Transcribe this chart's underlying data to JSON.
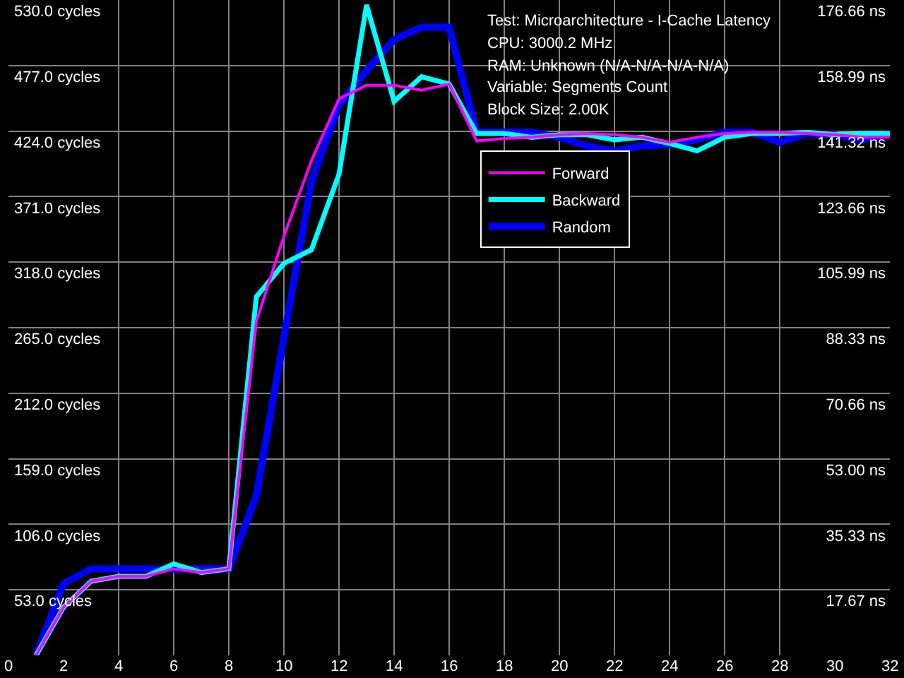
{
  "chart_data": {
    "type": "line",
    "x": [
      1,
      2,
      3,
      4,
      5,
      6,
      7,
      8,
      9,
      10,
      11,
      12,
      13,
      14,
      15,
      16,
      17,
      18,
      19,
      20,
      21,
      22,
      23,
      24,
      25,
      26,
      27,
      28,
      29,
      30,
      31,
      32
    ],
    "series": [
      {
        "name": "Forward",
        "color": "#ff00ff",
        "values": [
          0,
          39,
          60,
          64,
          64,
          70,
          67,
          70,
          270,
          339,
          400,
          450,
          461,
          461,
          457,
          462,
          416,
          418,
          419,
          421,
          422,
          421,
          419,
          415,
          419,
          422,
          423,
          423,
          422,
          421,
          419,
          419
        ]
      },
      {
        "name": "Backward",
        "color": "#00ffff",
        "values": [
          0,
          39,
          60,
          64,
          64,
          74,
          67,
          70,
          290,
          317,
          328,
          389,
          526,
          448,
          468,
          462,
          422,
          422,
          419,
          421,
          421,
          417,
          419,
          414,
          408,
          419,
          422,
          422,
          423,
          421,
          422,
          422
        ]
      },
      {
        "name": "Random",
        "color": "#0000ff",
        "values": [
          0,
          58,
          70,
          70,
          70,
          70,
          70,
          70,
          129,
          257,
          383,
          445,
          473,
          498,
          508,
          508,
          423,
          423,
          423,
          419,
          412,
          408,
          412,
          413,
          417,
          423,
          423,
          415,
          422,
          421,
          417,
          422
        ]
      }
    ],
    "xlim": [
      0,
      32
    ],
    "xticks": [
      0,
      2,
      4,
      6,
      8,
      10,
      12,
      14,
      16,
      18,
      20,
      22,
      24,
      26,
      28,
      30,
      32
    ],
    "ylim": [
      0,
      530
    ],
    "yticks": [
      {
        "value": 53,
        "label": "53.0 cycles"
      },
      {
        "value": 106,
        "label": "106.0 cycles"
      },
      {
        "value": 159,
        "label": "159.0 cycles"
      },
      {
        "value": 212,
        "label": "212.0 cycles"
      },
      {
        "value": 265,
        "label": "265.0 cycles"
      },
      {
        "value": 318,
        "label": "318.0 cycles"
      },
      {
        "value": 371,
        "label": "371.0 cycles"
      },
      {
        "value": 424,
        "label": "424.0 cycles"
      },
      {
        "value": 477,
        "label": "477.0 cycles"
      },
      {
        "value": 530,
        "label": "530.0 cycles"
      }
    ],
    "y2lim": [
      0,
      176.66
    ],
    "y2ticks": [
      {
        "value": 17.67,
        "label": "17.67 ns"
      },
      {
        "value": 35.33,
        "label": "35.33 ns"
      },
      {
        "value": 53.0,
        "label": "53.00 ns"
      },
      {
        "value": 70.66,
        "label": "70.66 ns"
      },
      {
        "value": 88.33,
        "label": "88.33 ns"
      },
      {
        "value": 105.99,
        "label": "105.99 ns"
      },
      {
        "value": 123.66,
        "label": "123.66 ns"
      },
      {
        "value": 141.32,
        "label": "141.32 ns"
      },
      {
        "value": 158.99,
        "label": "158.99 ns"
      },
      {
        "value": 176.66,
        "label": "176.66 ns"
      }
    ],
    "annotations": [
      "Test: Microarchitecture - I-Cache Latency",
      "CPU: 3000.2 MHz",
      "RAM: Unknown (N/A-N/A-N/A-N/A)",
      "Variable: Segments Count",
      "Block Size: 2.00K"
    ],
    "grid": true,
    "legend": "top right",
    "marker": "none",
    "line_style": "solid"
  }
}
